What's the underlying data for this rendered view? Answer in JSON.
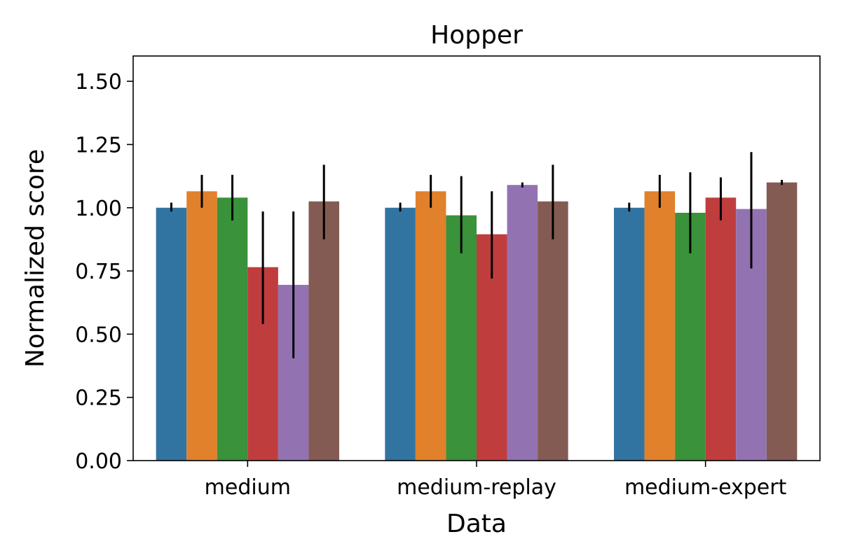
{
  "chart_data": {
    "type": "bar",
    "title": "Hopper",
    "xlabel": "Data",
    "ylabel": "Normalized score",
    "categories": [
      "medium",
      "medium-replay",
      "medium-expert"
    ],
    "ylim": [
      0,
      1.6
    ],
    "yticks": [
      "0.00",
      "0.25",
      "0.50",
      "0.75",
      "1.00",
      "1.25",
      "1.50"
    ],
    "grid": false,
    "legend": "none",
    "series": [
      {
        "color": "#3274a1",
        "values": [
          1.0,
          1.0,
          1.0
        ],
        "err_low": [
          0.985,
          0.985,
          0.985
        ],
        "err_high": [
          1.02,
          1.02,
          1.02
        ]
      },
      {
        "color": "#e1812c",
        "values": [
          1.065,
          1.065,
          1.065
        ],
        "err_low": [
          1.0,
          1.0,
          1.0
        ],
        "err_high": [
          1.13,
          1.13,
          1.13
        ]
      },
      {
        "color": "#3a923a",
        "values": [
          1.04,
          0.97,
          0.98
        ],
        "err_low": [
          0.95,
          0.82,
          0.82
        ],
        "err_high": [
          1.13,
          1.125,
          1.14
        ]
      },
      {
        "color": "#c03d3e",
        "values": [
          0.765,
          0.895,
          1.04
        ],
        "err_low": [
          0.54,
          0.72,
          0.95
        ],
        "err_high": [
          0.985,
          1.065,
          1.12
        ]
      },
      {
        "color": "#9372b2",
        "values": [
          0.695,
          1.09,
          0.995
        ],
        "err_low": [
          0.405,
          1.08,
          0.76
        ],
        "err_high": [
          0.985,
          1.1,
          1.22
        ]
      },
      {
        "color": "#845b53",
        "values": [
          1.025,
          1.025,
          1.1
        ],
        "err_low": [
          0.875,
          0.875,
          1.09
        ],
        "err_high": [
          1.17,
          1.17,
          1.11
        ]
      }
    ]
  }
}
